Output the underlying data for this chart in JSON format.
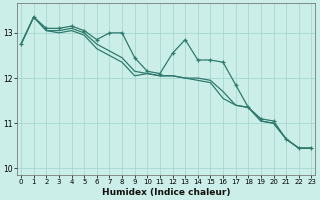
{
  "xlabel": "Humidex (Indice chaleur)",
  "ylabel": "",
  "background_color": "#cceee8",
  "grid_color": "#9dd4cc",
  "line_color": "#2e7b6e",
  "x_values": [
    0,
    1,
    2,
    3,
    4,
    5,
    6,
    7,
    8,
    9,
    10,
    11,
    12,
    13,
    14,
    15,
    16,
    17,
    18,
    19,
    20,
    21,
    22,
    23
  ],
  "line_jagged": [
    12.75,
    13.35,
    13.1,
    13.1,
    13.15,
    13.05,
    12.85,
    13.0,
    13.0,
    12.45,
    12.15,
    12.1,
    12.55,
    12.85,
    12.4,
    12.4,
    12.35,
    11.85,
    11.35,
    11.1,
    11.05,
    10.65,
    10.45,
    10.45
  ],
  "line_smooth1": [
    12.75,
    13.35,
    13.05,
    13.05,
    13.1,
    13.0,
    12.75,
    12.6,
    12.45,
    12.15,
    12.1,
    12.05,
    12.05,
    12.0,
    12.0,
    11.95,
    11.7,
    11.4,
    11.35,
    11.05,
    11.0,
    10.65,
    10.45,
    10.45
  ],
  "line_smooth2": [
    12.75,
    13.35,
    13.05,
    13.0,
    13.05,
    12.95,
    12.65,
    12.5,
    12.35,
    12.05,
    12.1,
    12.05,
    12.05,
    12.0,
    11.95,
    11.9,
    11.55,
    11.4,
    11.35,
    11.05,
    11.0,
    10.65,
    10.45,
    10.45
  ],
  "ylim": [
    9.85,
    13.65
  ],
  "yticks": [
    10,
    11,
    12,
    13
  ],
  "xlim": [
    -0.3,
    23.3
  ],
  "xtick_labels": [
    "0",
    "1",
    "2",
    "3",
    "4",
    "5",
    "6",
    "7",
    "8",
    "9",
    "10",
    "11",
    "12",
    "13",
    "14",
    "15",
    "16",
    "17",
    "18",
    "19",
    "20",
    "21",
    "22",
    "23"
  ],
  "xlabel_fontsize": 6.5,
  "ylabel_fontsize": 6.0,
  "tick_fontsize": 5.5,
  "line_width": 0.9,
  "marker_size": 3.0
}
